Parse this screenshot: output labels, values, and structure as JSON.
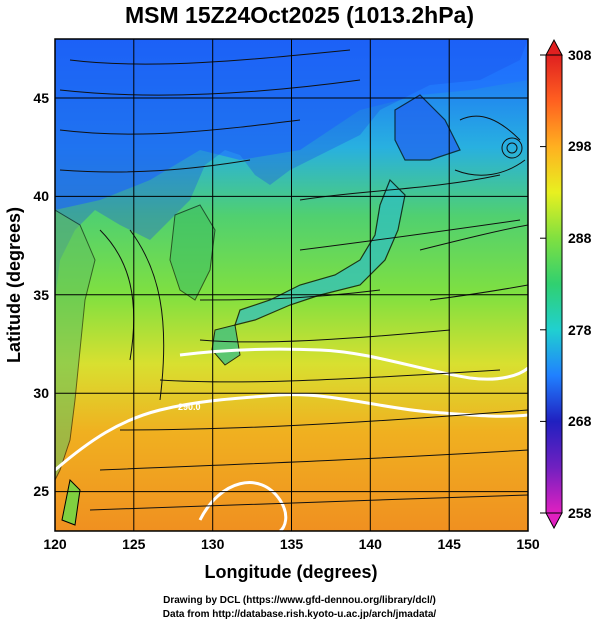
{
  "title": "MSM 15Z24Oct2025 (1013.2hPa)",
  "map": {
    "lon_range": [
      120,
      150
    ],
    "lat_range": [
      23,
      48
    ],
    "xlabel": "Longitude (degrees)",
    "ylabel": "Latitude  (degrees)",
    "x_ticks": [
      "120",
      "125",
      "130",
      "135",
      "140",
      "145",
      "150"
    ],
    "y_ticks": [
      "25",
      "30",
      "35",
      "40",
      "45"
    ],
    "grid": true,
    "field": "temperature",
    "contour_label": "290.0"
  },
  "colorbar": {
    "ticks": [
      "308",
      "298",
      "288",
      "278",
      "268",
      "258"
    ],
    "range": [
      258,
      308
    ],
    "colors": [
      "#e020c0",
      "#2020c0",
      "#2080ff",
      "#20d0d0",
      "#30d070",
      "#80e040",
      "#e8f020",
      "#ffb020",
      "#ff6020",
      "#e02020"
    ]
  },
  "credits": {
    "line1": "Drawing by DCL (https://www.gfd-dennou.org/library/dcl/)",
    "line2": "Data from http://database.rish.kyoto-u.ac.jp/arch/jmadata/"
  }
}
